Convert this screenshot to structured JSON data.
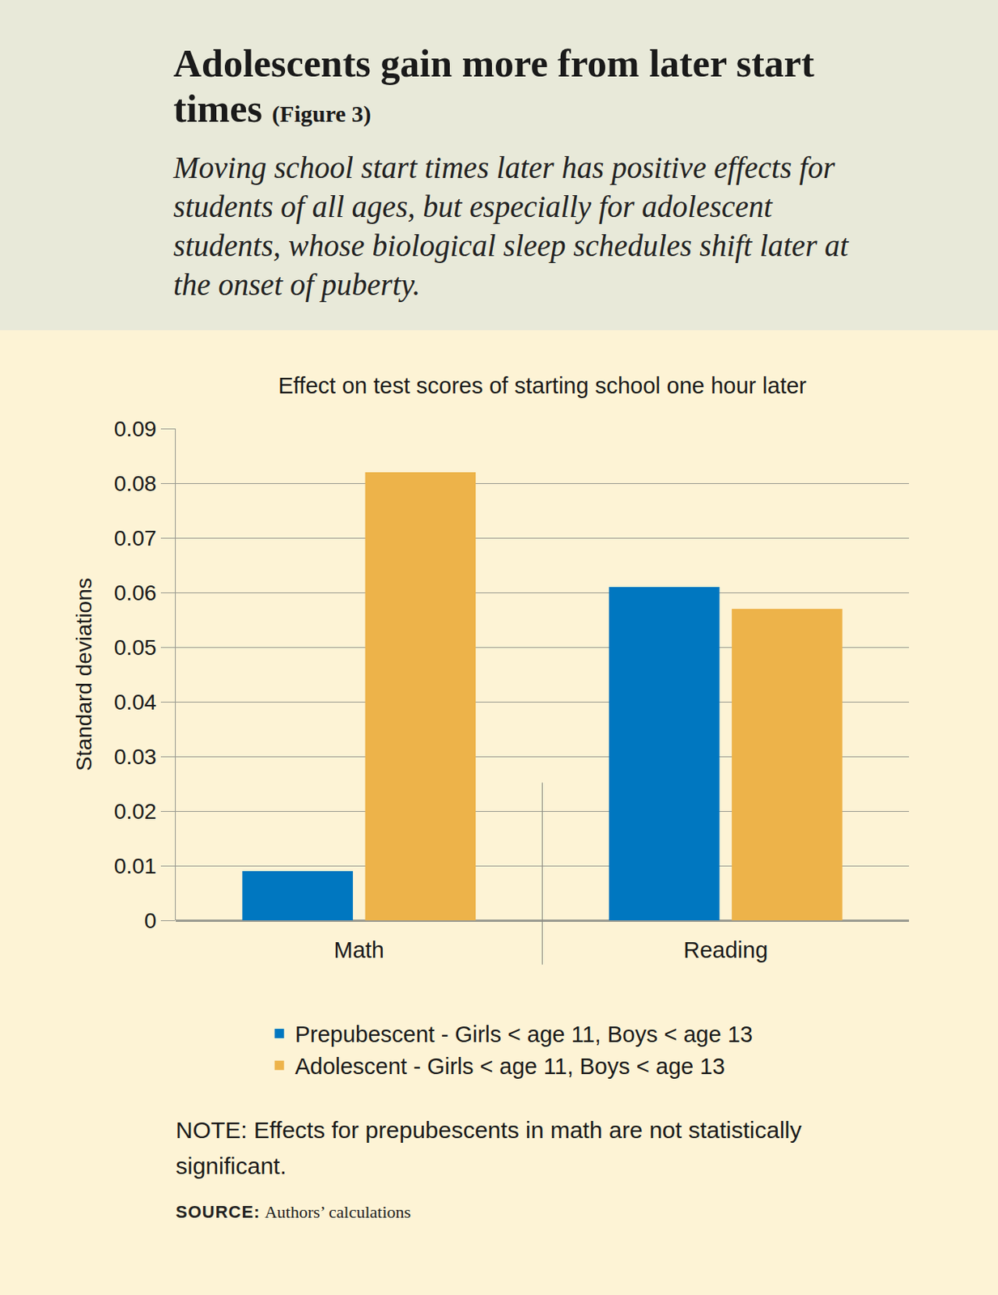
{
  "chart_data": {
    "type": "bar",
    "title": "Adolescents gain more from later start times",
    "figure_label": "(Figure 3)",
    "subtitle": "Moving school start times later has positive effects for students of all ages, but especially for adolescent students, whose biological sleep schedules shift later at the onset of puberty.",
    "plot_title": "Effect on test scores of starting school one hour later",
    "y_label": "Standard deviations",
    "categories": [
      "Math",
      "Reading"
    ],
    "series": [
      {
        "name": "Prepubescent - Girls < age 11, Boys < age 13",
        "color": "#0077c0",
        "values": [
          0.009,
          0.061
        ]
      },
      {
        "name": "Adolescent - Girls < age 11, Boys < age 13",
        "color": "#edb34a",
        "values": [
          0.082,
          0.057
        ]
      }
    ],
    "ylim": [
      0,
      0.09
    ],
    "yticks": [
      0,
      0.01,
      0.02,
      0.03,
      0.04,
      0.05,
      0.06,
      0.07,
      0.08,
      0.09
    ],
    "grid": true,
    "legend": "bottom",
    "notes": [
      "NOTE: Effects for prepubescents in math are not statistically significant."
    ],
    "source": {
      "label": "SOURCE:",
      "text": "Authors’ calculations"
    }
  }
}
